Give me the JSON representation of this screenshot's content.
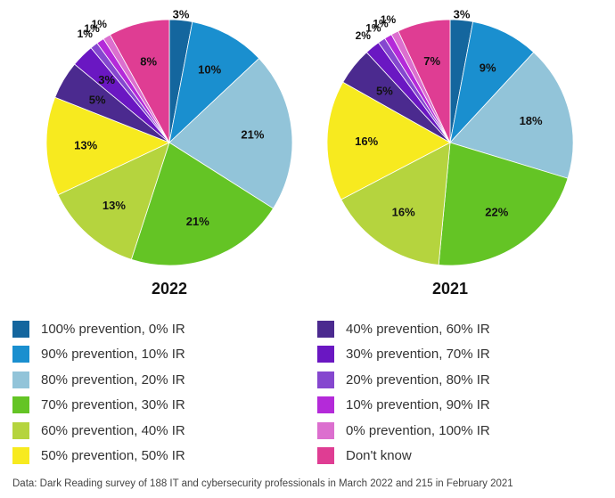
{
  "categories": [
    {
      "label": "100% prevention, 0% IR",
      "color": "#14669e"
    },
    {
      "label": "90% prevention, 10% IR",
      "color": "#1a8fcf"
    },
    {
      "label": "80% prevention, 20% IR",
      "color": "#92c4d9"
    },
    {
      "label": "70% prevention, 30% IR",
      "color": "#64c425"
    },
    {
      "label": "60% prevention, 40% IR",
      "color": "#b5d43e"
    },
    {
      "label": "50% prevention, 50% IR",
      "color": "#f7ea1f"
    },
    {
      "label": "40% prevention, 60% IR",
      "color": "#4b2a8f"
    },
    {
      "label": "30% prevention, 70% IR",
      "color": "#6a17c2"
    },
    {
      "label": "20% prevention, 80% IR",
      "color": "#8547cf"
    },
    {
      "label": "10% prevention, 90% IR",
      "color": "#b42ad9"
    },
    {
      "label": "0% prevention, 100% IR",
      "color": "#dc6fcf"
    },
    {
      "label": "Don't know",
      "color": "#df3d93"
    }
  ],
  "chart_data": [
    {
      "type": "pie",
      "title": "2022",
      "categories": [
        "100% prevention, 0% IR",
        "90% prevention, 10% IR",
        "80% prevention, 20% IR",
        "70% prevention, 30% IR",
        "60% prevention, 40% IR",
        "50% prevention, 50% IR",
        "40% prevention, 60% IR",
        "30% prevention, 70% IR",
        "20% prevention, 80% IR",
        "10% prevention, 90% IR",
        "0% prevention, 100% IR",
        "Don't know"
      ],
      "values": [
        3,
        10,
        21,
        21,
        13,
        13,
        5,
        3,
        1,
        1,
        1,
        8
      ],
      "labels": [
        "3%",
        "10%",
        "21%",
        "21%",
        "13%",
        "13%",
        "5%",
        "3%",
        "1%",
        "1%",
        "1%",
        "8%"
      ]
    },
    {
      "type": "pie",
      "title": "2021",
      "categories": [
        "100% prevention, 0% IR",
        "90% prevention, 10% IR",
        "80% prevention, 20% IR",
        "70% prevention, 30% IR",
        "60% prevention, 40% IR",
        "50% prevention, 50% IR",
        "40% prevention, 60% IR",
        "30% prevention, 70% IR",
        "20% prevention, 80% IR",
        "10% prevention, 90% IR",
        "0% prevention, 100% IR",
        "Don't know"
      ],
      "values": [
        3,
        9,
        18,
        22,
        16,
        16,
        5,
        2,
        1,
        1,
        1,
        7
      ],
      "labels": [
        "3%",
        "9%",
        "18%",
        "22%",
        "16%",
        "16%",
        "5%",
        "2%",
        "1%",
        "1%",
        "1%",
        "7%"
      ]
    }
  ],
  "footnote": "Data: Dark Reading survey of 188 IT and cybersecurity professionals in March 2022 and 215 in February 2021"
}
